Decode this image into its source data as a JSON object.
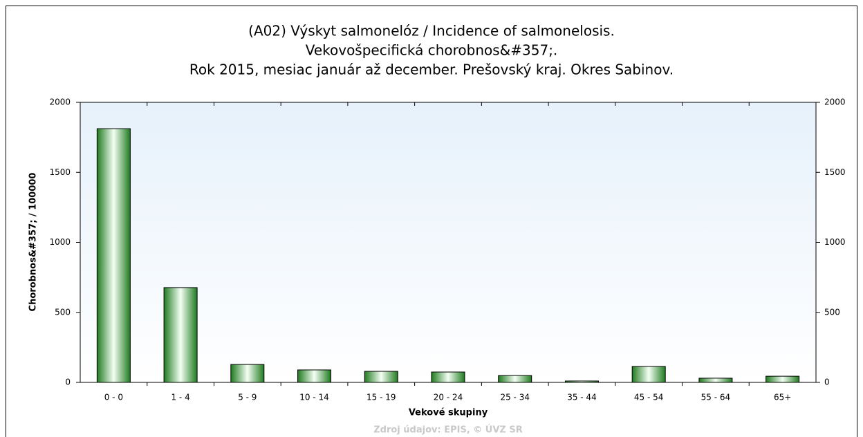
{
  "chart_data": {
    "type": "bar",
    "title": [
      "(A02) Výskyt salmonelóz / Incidence of salmonelosis.",
      "Vekovošpecifická chorobnos&#357;.",
      "Rok 2015, mesiac január až december. Prešovský kraj. Okres Sabinov."
    ],
    "x_label": "Vekové skupiny",
    "y_label": "Chorobnos&#357; / 100000",
    "source": "Zdroj údajov: EPIS, © ÚVZ SR",
    "categories": [
      "0 - 0",
      "1 - 4",
      "5 - 9",
      "10 - 14",
      "15 - 19",
      "20 - 24",
      "25 - 34",
      "35 - 44",
      "45 - 54",
      "55 - 64",
      "65+"
    ],
    "values": [
      1812,
      677,
      128,
      89,
      79,
      74,
      49,
      10,
      114,
      30,
      44
    ],
    "color": "#2e8b2e",
    "ylim": [
      0,
      2000
    ],
    "yticks": [
      0,
      500,
      1000,
      1500,
      2000
    ],
    "y2lim": [
      0,
      2000
    ],
    "y2ticks": [
      0,
      500,
      1000,
      1500,
      2000
    ]
  }
}
